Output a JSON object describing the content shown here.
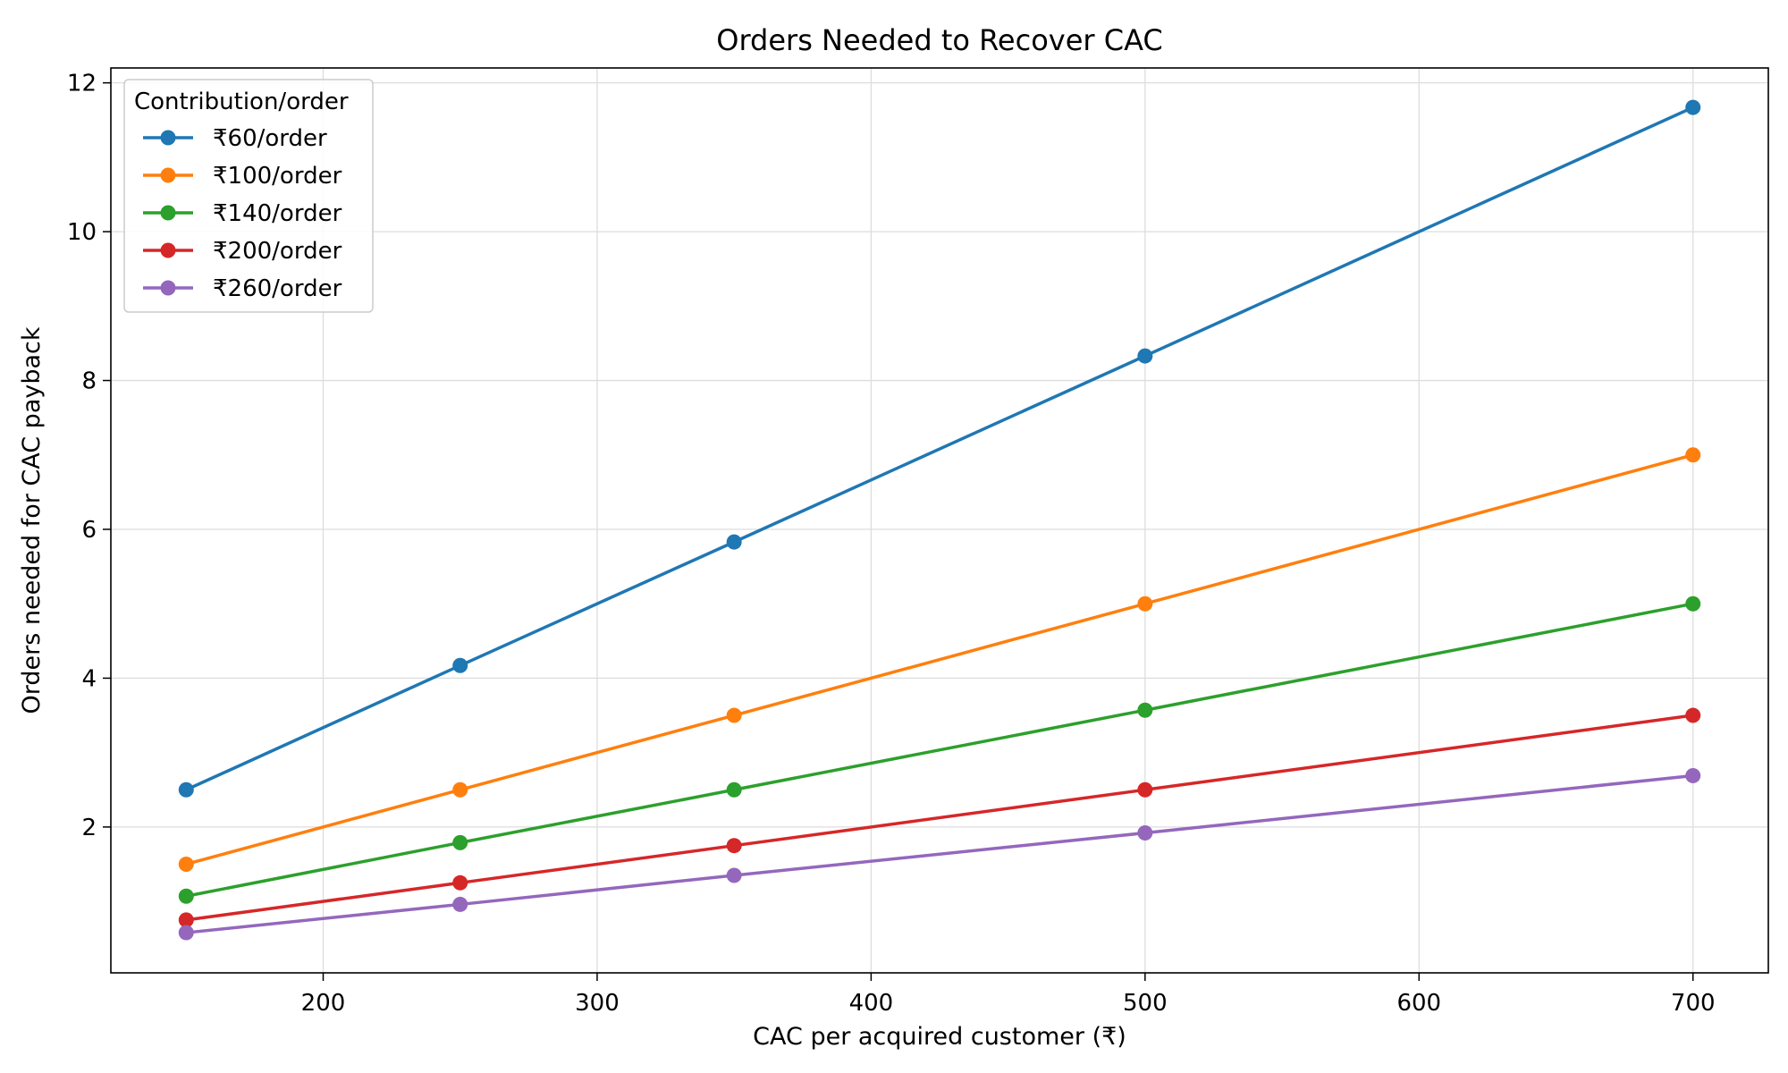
{
  "chart_data": {
    "type": "line",
    "title": "Orders Needed to Recover CAC",
    "xlabel": "CAC per acquired customer (₹)",
    "ylabel": "Orders needed for CAC payback",
    "x": [
      150,
      250,
      350,
      500,
      700
    ],
    "xlim": [
      122.5,
      727.5
    ],
    "ylim": [
      0.04,
      12.2
    ],
    "xticks": [
      200,
      300,
      400,
      500,
      600,
      700
    ],
    "yticks": [
      2,
      4,
      6,
      8,
      10,
      12
    ],
    "grid": true,
    "legend_title": "Contribution/order",
    "legend_position": "top-left",
    "series": [
      {
        "name": "₹60/order",
        "color": "#1f77b4",
        "values": [
          2.5,
          4.17,
          5.83,
          8.33,
          11.67
        ]
      },
      {
        "name": "₹100/order",
        "color": "#ff7f0e",
        "values": [
          1.5,
          2.5,
          3.5,
          5.0,
          7.0
        ]
      },
      {
        "name": "₹140/order",
        "color": "#2ca02c",
        "values": [
          1.07,
          1.79,
          2.5,
          3.57,
          5.0
        ]
      },
      {
        "name": "₹200/order",
        "color": "#d62728",
        "values": [
          0.75,
          1.25,
          1.75,
          2.5,
          3.5
        ]
      },
      {
        "name": "₹260/order",
        "color": "#9467bd",
        "values": [
          0.58,
          0.96,
          1.35,
          1.92,
          2.69
        ]
      }
    ]
  }
}
